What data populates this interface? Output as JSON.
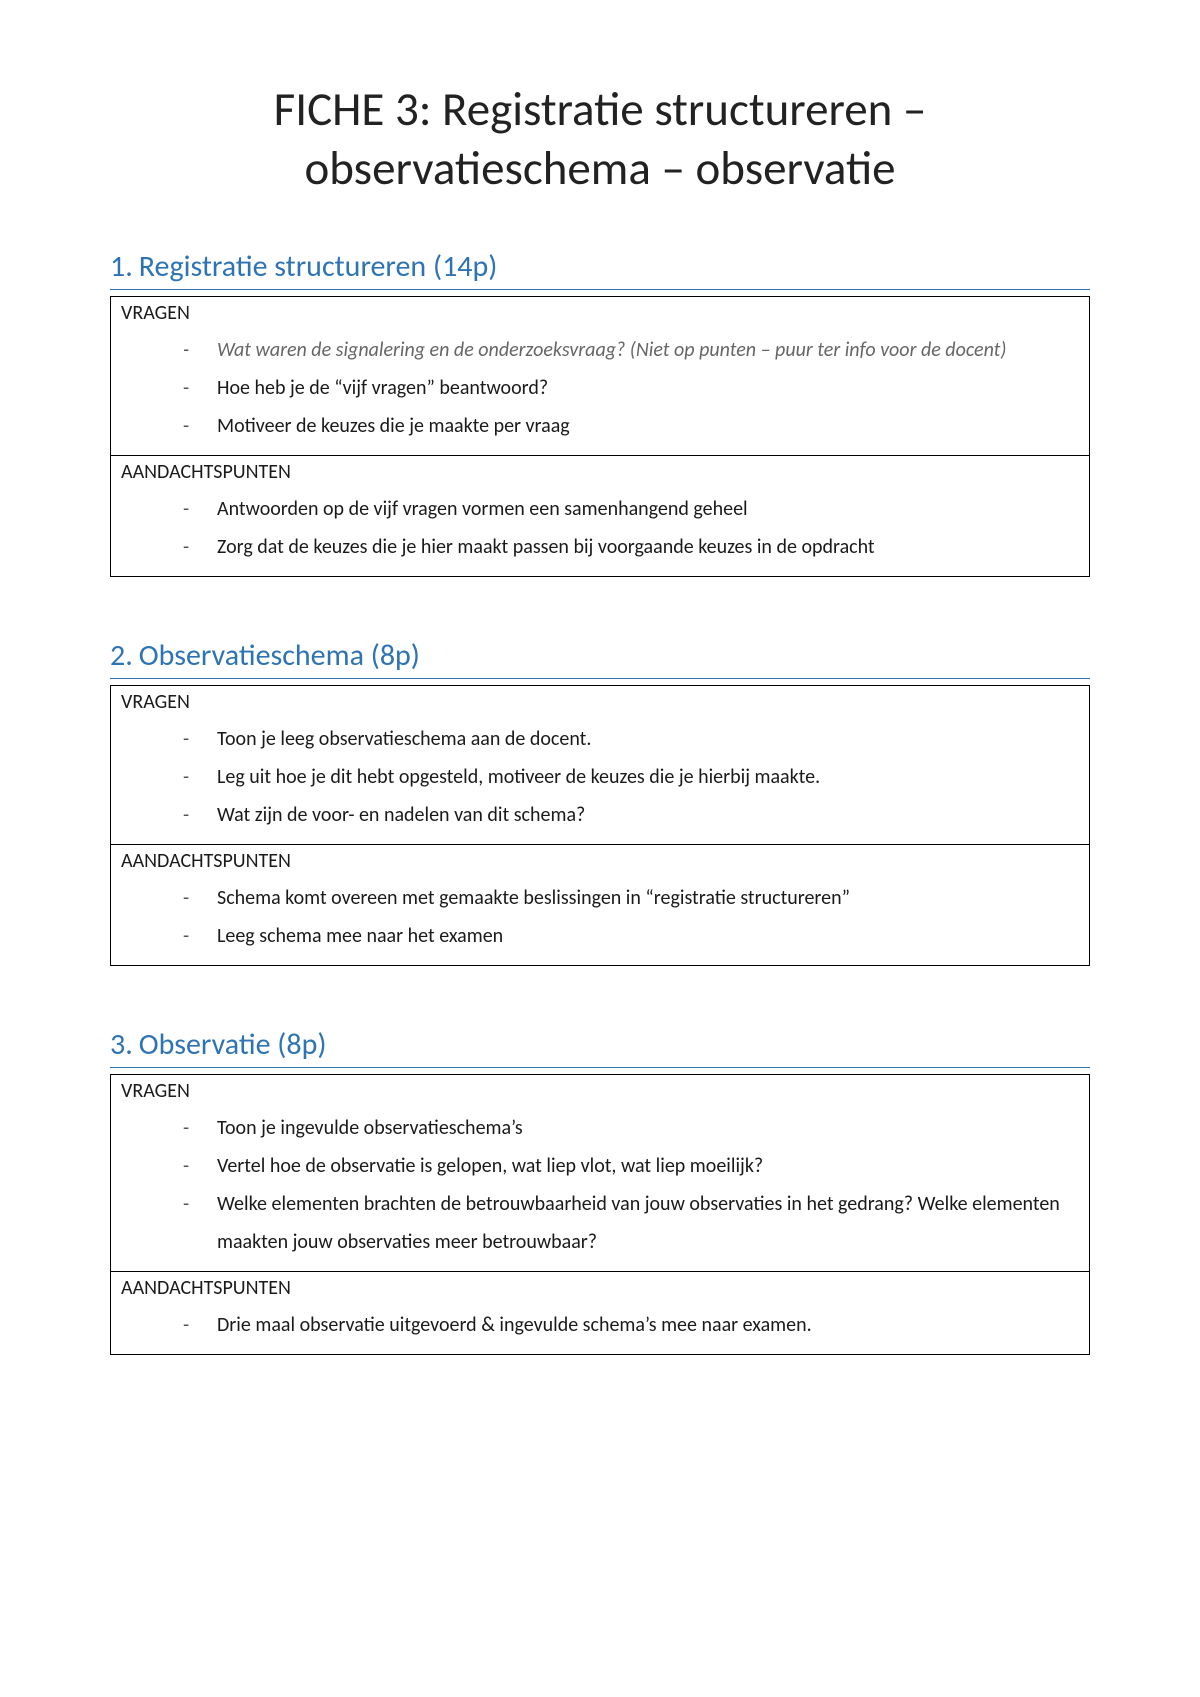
{
  "title": "FICHE 3: Registratie structureren – observatieschema – observatie",
  "heading_color": "#2e74b5",
  "labels": {
    "vragen": "VRAGEN",
    "aandacht": "AANDACHTSPUNTEN"
  },
  "sections": [
    {
      "num": "1.",
      "title": "Registratie structureren (14p)",
      "vragen": [
        {
          "text": "Wat waren de signalering en de onderzoeksvraag? (Niet op punten – puur ter info voor de docent)",
          "italic": true
        },
        {
          "text": "Hoe heb je de “vijf vragen” beantwoord?"
        },
        {
          "text": "Motiveer de keuzes die je maakte per vraag"
        }
      ],
      "aandacht": [
        {
          "text": "Antwoorden op de vijf vragen vormen een samenhangend geheel"
        },
        {
          "text": "Zorg dat de keuzes die je hier maakt passen bij voorgaande keuzes in de opdracht"
        }
      ]
    },
    {
      "num": "2.",
      "title": "Observatieschema (8p)",
      "vragen": [
        {
          "text": "Toon je leeg observatieschema aan de docent."
        },
        {
          "text": "Leg uit hoe je dit hebt opgesteld, motiveer de keuzes die je hierbij maakte."
        },
        {
          "text": "Wat zijn de voor- en nadelen van dit schema?"
        }
      ],
      "aandacht": [
        {
          "text": "Schema komt overeen met gemaakte beslissingen in “registratie structureren”"
        },
        {
          "text": "Leeg schema mee naar het examen"
        }
      ]
    },
    {
      "num": "3.",
      "title": "Observatie (8p)",
      "vragen": [
        {
          "text": "Toon je ingevulde observatieschema’s"
        },
        {
          "text": "Vertel hoe de observatie is gelopen, wat liep vlot, wat liep moeilijk?"
        },
        {
          "text": "Welke elementen brachten de betrouwbaarheid van jouw observaties in het gedrang? Welke elementen maakten jouw observaties meer betrouwbaar?"
        }
      ],
      "aandacht": [
        {
          "text": "Drie maal observatie uitgevoerd & ingevulde schema’s mee naar examen."
        }
      ]
    }
  ]
}
